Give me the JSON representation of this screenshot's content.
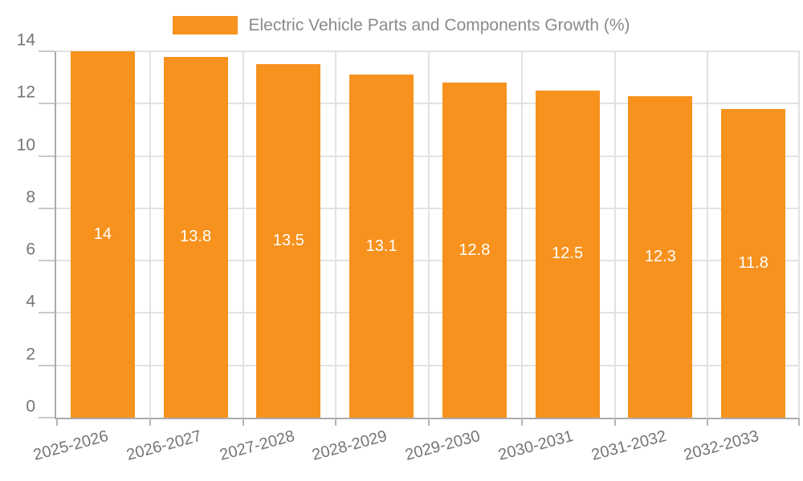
{
  "chart_data": {
    "type": "bar",
    "legend": "Electric Vehicle Parts and Components Growth (%)",
    "categories": [
      "2025-2026",
      "2026-2027",
      "2027-2028",
      "2028-2029",
      "2029-2030",
      "2030-2031",
      "2031-2032",
      "2032-2033"
    ],
    "values": [
      14,
      13.8,
      13.5,
      13.1,
      12.8,
      12.5,
      12.3,
      11.8
    ],
    "value_labels": [
      "14",
      "13.8",
      "13.5",
      "13.1",
      "12.8",
      "12.5",
      "12.3",
      "11.8"
    ],
    "ylim": [
      0,
      14
    ],
    "yticks": [
      0,
      2,
      4,
      6,
      8,
      10,
      12,
      14
    ],
    "grid": true,
    "legend_position": "top-center",
    "x_label_rotation_deg": -15,
    "colors": {
      "bar": "#F7921E",
      "bar_value_text": "#ffffff",
      "grid": "#e2e2e2",
      "axis": "#ababab",
      "tick_mark": "#c9c9c9",
      "x_tick_mark": "#b5b5b5",
      "tick_text": "#757575",
      "legend_text": "#8a8a8a",
      "background": "#ffffff"
    }
  }
}
